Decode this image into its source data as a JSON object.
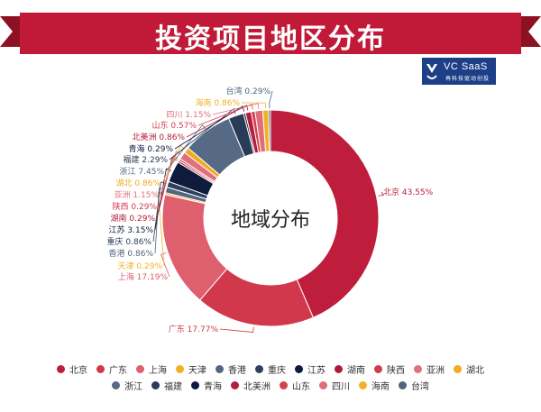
{
  "header": {
    "title": "投资项目地区分布"
  },
  "logo": {
    "main": "VC SaaS",
    "sub": "再科技驱动创投"
  },
  "chart_data": {
    "type": "pie",
    "center_label": "地域分布",
    "unit": "%",
    "slices": [
      {
        "name": "北京",
        "value": 43.55,
        "color": "#be1e3c"
      },
      {
        "name": "广东",
        "value": 17.77,
        "color": "#d2384c"
      },
      {
        "name": "上海",
        "value": 17.19,
        "color": "#de5f6e"
      },
      {
        "name": "天津",
        "value": 0.29,
        "color": "#f2b124"
      },
      {
        "name": "香港",
        "value": 0.86,
        "color": "#53667f"
      },
      {
        "name": "重庆",
        "value": 0.86,
        "color": "#2d405e"
      },
      {
        "name": "江苏",
        "value": 3.15,
        "color": "#0e1b3c"
      },
      {
        "name": "湖南",
        "value": 0.29,
        "color": "#b01a3a"
      },
      {
        "name": "陕西",
        "value": 0.29,
        "color": "#d33b50"
      },
      {
        "name": "亚洲",
        "value": 1.15,
        "color": "#e0707b"
      },
      {
        "name": "湖北",
        "value": 0.86,
        "color": "#f1ab22"
      },
      {
        "name": "浙江",
        "value": 7.45,
        "color": "#566a85"
      },
      {
        "name": "福建",
        "value": 2.29,
        "color": "#2a3b58"
      },
      {
        "name": "青海",
        "value": 0.29,
        "color": "#0e1b3c"
      },
      {
        "name": "北美洲",
        "value": 0.86,
        "color": "#b41d3d"
      },
      {
        "name": "山东",
        "value": 0.57,
        "color": "#d5404f"
      },
      {
        "name": "四川",
        "value": 1.15,
        "color": "#df6e78"
      },
      {
        "name": "海南",
        "value": 0.86,
        "color": "#f1b128"
      },
      {
        "name": "台湾",
        "value": 0.29,
        "color": "#4f6480"
      }
    ],
    "data_labels": [
      "北京 43.55%",
      "广东 17.77%",
      "上海 17.19%",
      "天津 0.29%",
      "香港 0.86%",
      "重庆 0.86%",
      "江苏 3.15%",
      "湖南 0.29%",
      "陕西 0.29%",
      "亚洲 1.15%",
      "湖北 0.86%",
      "浙江 7.45%",
      "福建 2.29%",
      "青海 0.29%",
      "北美洲 0.86%",
      "山东 0.57%",
      "四川 1.15%",
      "海南 0.86%",
      "台湾 0.29%"
    ],
    "legend_position": "bottom"
  }
}
